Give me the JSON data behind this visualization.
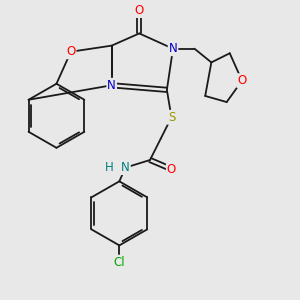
{
  "background_color": "#e8e8e8",
  "bond_color": "#1a1a1a",
  "figsize": [
    3.0,
    3.0
  ],
  "dpi": 100,
  "xlim": [
    0.0,
    1.0
  ],
  "ylim": [
    0.0,
    1.0
  ]
}
